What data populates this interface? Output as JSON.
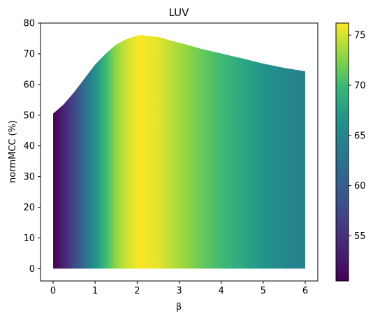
{
  "chart_data": {
    "type": "area",
    "title": "LUV",
    "xlabel": "β",
    "ylabel": "normMCC (%)",
    "xlim": [
      -0.3,
      6.3
    ],
    "ylim": [
      -4,
      80
    ],
    "x_ticks": [
      0,
      1,
      2,
      3,
      4,
      5,
      6
    ],
    "y_ticks": [
      0,
      10,
      20,
      30,
      40,
      50,
      60,
      70,
      80
    ],
    "x": [
      0,
      0.25,
      0.5,
      0.75,
      1.0,
      1.25,
      1.5,
      1.75,
      2.0,
      2.1,
      2.25,
      2.5,
      2.75,
      3.0,
      3.25,
      3.5,
      4.0,
      4.5,
      5.0,
      5.5,
      6.0
    ],
    "values": [
      50.5,
      53.5,
      57.5,
      62.0,
      66.5,
      70.0,
      73.0,
      74.8,
      75.9,
      76.2,
      75.8,
      75.5,
      74.5,
      73.6,
      72.7,
      71.7,
      70.1,
      68.5,
      66.8,
      65.4,
      64.3
    ],
    "fill_base": 0,
    "colormap": "viridis",
    "grid": false,
    "colorbar": {
      "range": [
        50.5,
        76.2
      ],
      "ticks": [
        55,
        60,
        65,
        70,
        75
      ]
    }
  }
}
